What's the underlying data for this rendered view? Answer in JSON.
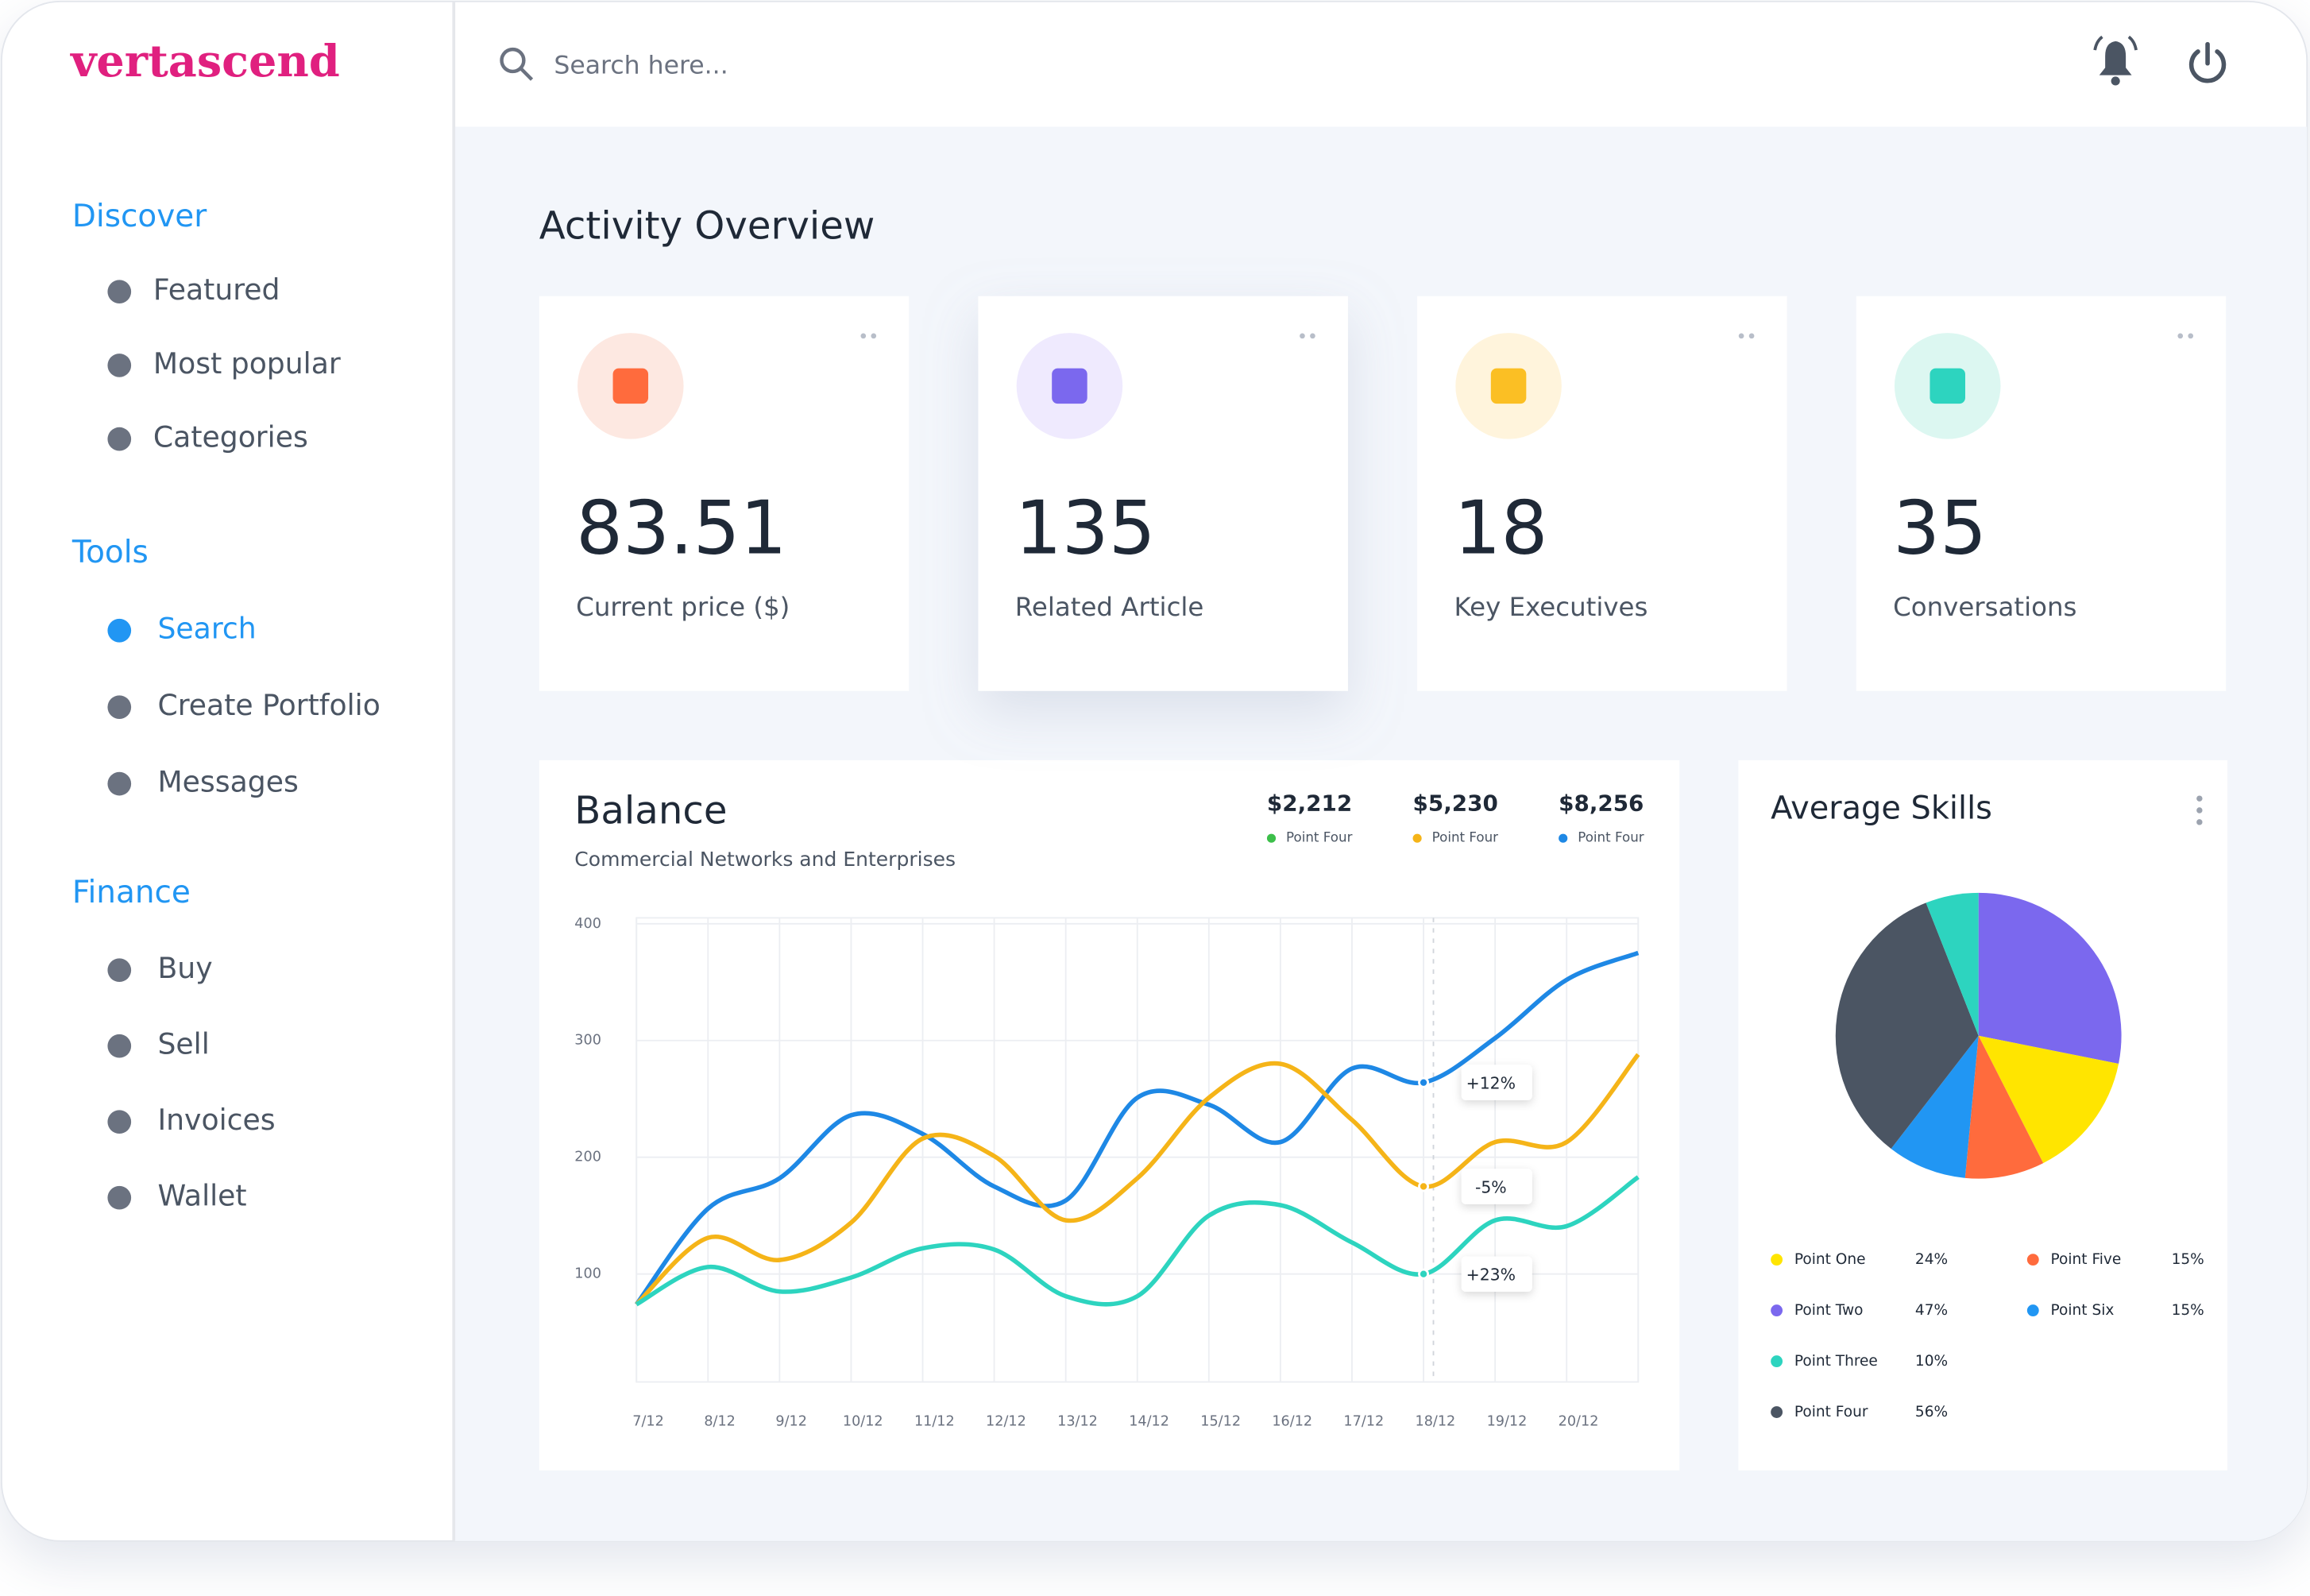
{
  "sidebar": {
    "logo": "vertascend",
    "sections": [
      {
        "title": "Discover",
        "items": [
          "Featured",
          "Most popular",
          "Categories"
        ]
      },
      {
        "title": "Tools",
        "items": [
          "Search",
          "Create Portfolio",
          "Messages"
        ]
      },
      {
        "title": "Finance",
        "items": [
          "Buy",
          "Sell",
          "Invoices",
          "Wallet"
        ]
      }
    ]
  },
  "header": {
    "search_placeholder": "Search here..."
  },
  "page_title": "Activity Overview",
  "cards": [
    {
      "value": "83.51",
      "label": "Current price ($)"
    },
    {
      "value": "135",
      "label": "Related Article"
    },
    {
      "value": "18",
      "label": "Key Executives"
    },
    {
      "value": "35",
      "label": "Conversations"
    }
  ],
  "chart_data": [
    {
      "type": "line",
      "title": "Balance",
      "subtitle": "Commercial Networks and Enterprises",
      "categories": [
        "7/12",
        "8/12",
        "9/12",
        "10/12",
        "11/12",
        "12/12",
        "13/12",
        "14/12",
        "15/12",
        "16/12",
        "17/12",
        "18/12",
        "19/12",
        "20/12",
        null
      ],
      "ylim": [
        0,
        400
      ],
      "yticks": [
        100,
        200,
        300,
        400
      ],
      "grid": true,
      "series": [
        {
          "name": "Point Four",
          "total": "$8,256",
          "annotation": "+12%",
          "color": "#1e88e5",
          "values": [
            74,
            156,
            182,
            236,
            220,
            175,
            163,
            251,
            245,
            213,
            276,
            264,
            302,
            352,
            375
          ]
        },
        {
          "name": "Point Four",
          "total": "$5,230",
          "annotation": "-5%",
          "color": "#f5b418",
          "values": [
            74,
            131,
            112,
            144,
            216,
            201,
            146,
            182,
            251,
            280,
            232,
            175,
            213,
            213,
            288
          ]
        },
        {
          "name": "Point Four",
          "total": "$2,212",
          "annotation": "+23%",
          "color": "#2dd4bf",
          "values": [
            74,
            106,
            85,
            97,
            122,
            121,
            81,
            81,
            150,
            159,
            127,
            100,
            146,
            141,
            183
          ]
        }
      ]
    },
    {
      "type": "pie",
      "title": "Average Skills",
      "categories": [
        "Point One",
        "Point Two",
        "Point Three",
        "Point Four",
        "Point Five",
        "Point Six"
      ],
      "values": [
        24,
        47,
        10,
        56,
        15,
        15
      ],
      "value_labels": [
        "24%",
        "47%",
        "10%",
        "56%",
        "15%",
        "15%"
      ],
      "colors": [
        "#ffe500",
        "#7b68ee",
        "#2dd4bf",
        "#4b5563",
        "#ff6b3d",
        "#2196f3"
      ]
    }
  ]
}
